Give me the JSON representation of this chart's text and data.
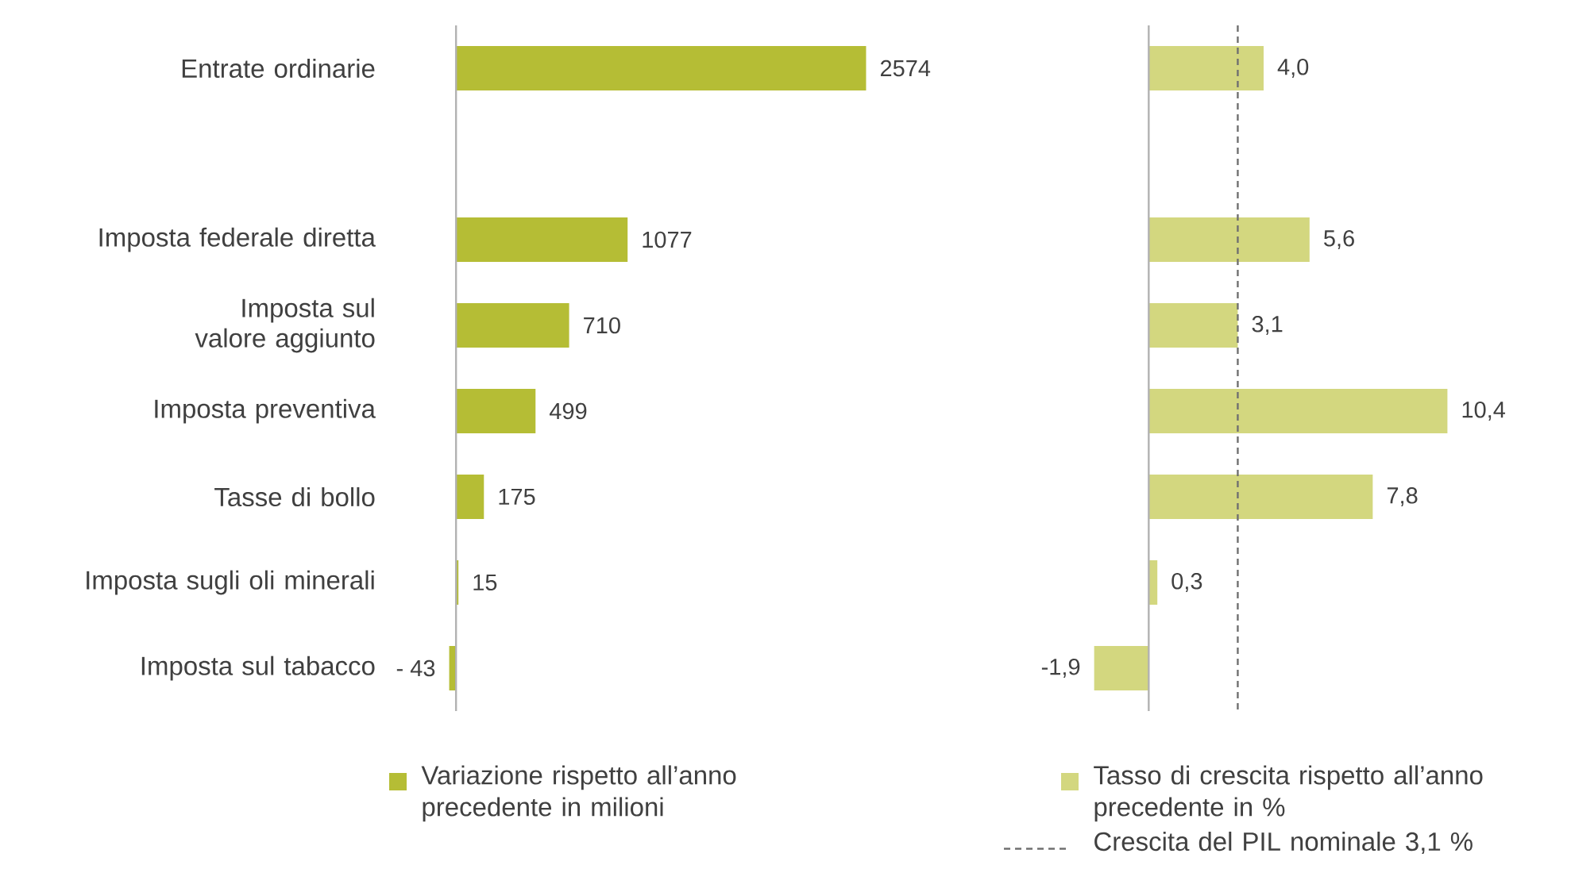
{
  "chart_data": [
    {
      "type": "bar",
      "orientation": "horizontal",
      "categories": [
        "Entrate ordinarie",
        null,
        "Imposta federale diretta",
        "Imposta sul valore aggiunto",
        "Imposta preventiva",
        "Tasse di bollo",
        "Imposta sugli oli minerali",
        "Imposta sul tabacco"
      ],
      "series": [
        {
          "name": "Variazione rispetto all’anno precedente in milioni",
          "color": "#b5bd35",
          "values": [
            2574,
            null,
            1077,
            710,
            499,
            175,
            15,
            -43
          ],
          "value_labels": [
            "2574",
            null,
            "1077",
            "710",
            "499",
            "175",
            "15",
            "- 43"
          ]
        }
      ],
      "tick_labels": "y",
      "legend": "bottom"
    },
    {
      "type": "bar",
      "orientation": "horizontal",
      "categories": [
        null,
        null,
        null,
        null,
        null,
        null,
        null,
        null
      ],
      "series": [
        {
          "name": "Tasso di crescita rispetto all’anno precedente in %",
          "color": "#d3d77f",
          "values": [
            4.0,
            null,
            5.6,
            3.1,
            10.4,
            7.8,
            0.3,
            -1.9
          ],
          "value_labels": [
            "4,0",
            null,
            "5,6",
            "3,1",
            "10,4",
            "7,8",
            "0,3",
            "-1,9"
          ]
        }
      ],
      "ref_lines": [
        {
          "axis": "x",
          "value": 3.1,
          "label": "Crescita del PIL nominale 3,1 %",
          "color": "#707070",
          "line_style": "dashed"
        }
      ],
      "tick_labels": false,
      "legend": "bottom"
    }
  ]
}
